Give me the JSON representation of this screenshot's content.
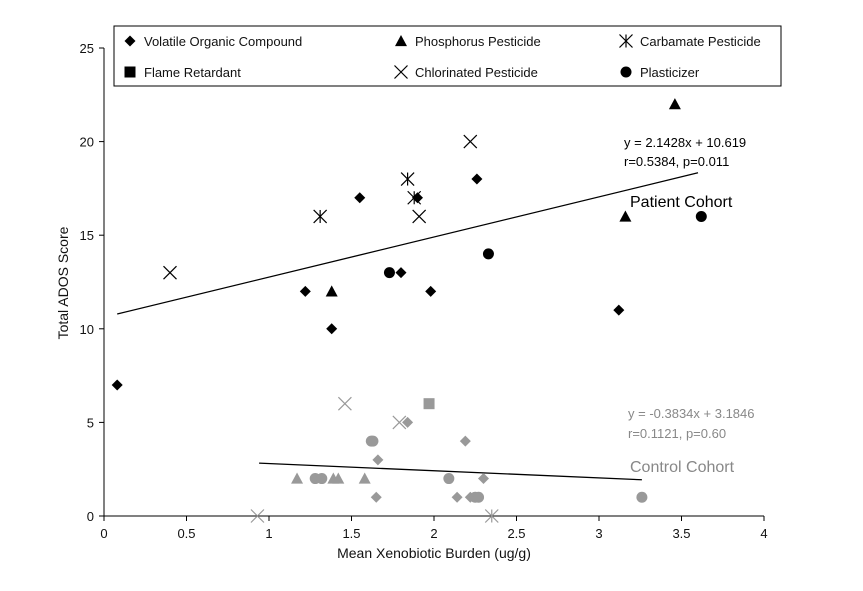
{
  "chart_data": {
    "type": "scatter",
    "xlabel": "Mean Xenobiotic Burden (ug/g)",
    "ylabel": "Total ADOS Score",
    "xlim": [
      0,
      4
    ],
    "ylim": [
      0,
      25
    ],
    "xticks": [
      0,
      0.5,
      1,
      1.5,
      2,
      2.5,
      3,
      3.5,
      4
    ],
    "xtick_labels": [
      "0",
      "0.5",
      "1",
      "1.5",
      "2",
      "2.5",
      "3",
      "3.5",
      "4"
    ],
    "yticks": [
      0,
      5,
      10,
      15,
      20,
      25
    ],
    "ytick_labels": [
      "0",
      "5",
      "10",
      "15",
      "20",
      "25"
    ],
    "grid": false,
    "legend_position": "top",
    "legend": [
      {
        "label": "Volatile Organic Compound",
        "marker": "diamond"
      },
      {
        "label": "Phosphorus Pesticide",
        "marker": "triangle"
      },
      {
        "label": "Carbamate Pesticide",
        "marker": "asterisk"
      },
      {
        "label": "Flame Retardant",
        "marker": "square"
      },
      {
        "label": "Chlorinated Pesticide",
        "marker": "x"
      },
      {
        "label": "Plasticizer",
        "marker": "circle"
      }
    ],
    "colors": {
      "patient": "#000000",
      "control": "#999999"
    },
    "cohorts": [
      {
        "name": "Patient Cohort",
        "color": "#000000",
        "equation": "y = 2.1428x + 10.619",
        "stats": "r=0.5384, p=0.011",
        "fit": {
          "slope": 2.1428,
          "intercept": 10.619,
          "x_range": [
            0.08,
            3.6
          ]
        },
        "points": [
          {
            "marker": "diamond",
            "x": 0.08,
            "y": 7
          },
          {
            "marker": "diamond",
            "x": 1.22,
            "y": 12
          },
          {
            "marker": "diamond",
            "x": 1.38,
            "y": 10
          },
          {
            "marker": "diamond",
            "x": 1.55,
            "y": 17
          },
          {
            "marker": "diamond",
            "x": 1.8,
            "y": 13
          },
          {
            "marker": "diamond",
            "x": 1.9,
            "y": 17
          },
          {
            "marker": "diamond",
            "x": 1.98,
            "y": 12
          },
          {
            "marker": "diamond",
            "x": 2.26,
            "y": 18
          },
          {
            "marker": "diamond",
            "x": 3.12,
            "y": 11
          },
          {
            "marker": "triangle",
            "x": 1.38,
            "y": 12
          },
          {
            "marker": "triangle",
            "x": 3.16,
            "y": 16
          },
          {
            "marker": "triangle",
            "x": 3.46,
            "y": 22
          },
          {
            "marker": "asterisk",
            "x": 1.31,
            "y": 16
          },
          {
            "marker": "asterisk",
            "x": 1.84,
            "y": 18
          },
          {
            "marker": "asterisk",
            "x": 1.88,
            "y": 17
          },
          {
            "marker": "x",
            "x": 0.4,
            "y": 13
          },
          {
            "marker": "x",
            "x": 1.91,
            "y": 16
          },
          {
            "marker": "x",
            "x": 2.22,
            "y": 20
          },
          {
            "marker": "circle",
            "x": 1.73,
            "y": 13
          },
          {
            "marker": "circle",
            "x": 2.33,
            "y": 14
          },
          {
            "marker": "circle",
            "x": 3.62,
            "y": 16
          }
        ]
      },
      {
        "name": "Control Cohort",
        "color": "#999999",
        "equation": "y = -0.3834x + 3.1846",
        "stats": "r=0.1121, p=0.60",
        "fit": {
          "slope": -0.3834,
          "intercept": 3.1846,
          "x_range": [
            0.94,
            3.26
          ]
        },
        "points": [
          {
            "marker": "diamond",
            "x": 1.65,
            "y": 1
          },
          {
            "marker": "diamond",
            "x": 1.66,
            "y": 3
          },
          {
            "marker": "diamond",
            "x": 1.84,
            "y": 5
          },
          {
            "marker": "diamond",
            "x": 2.14,
            "y": 1
          },
          {
            "marker": "diamond",
            "x": 2.19,
            "y": 4
          },
          {
            "marker": "diamond",
            "x": 2.22,
            "y": 1
          },
          {
            "marker": "diamond",
            "x": 2.3,
            "y": 2
          },
          {
            "marker": "triangle",
            "x": 1.17,
            "y": 2
          },
          {
            "marker": "triangle",
            "x": 1.39,
            "y": 2
          },
          {
            "marker": "triangle",
            "x": 1.42,
            "y": 2
          },
          {
            "marker": "triangle",
            "x": 1.58,
            "y": 2
          },
          {
            "marker": "square",
            "x": 1.97,
            "y": 6
          },
          {
            "marker": "x",
            "x": 0.93,
            "y": 0
          },
          {
            "marker": "x",
            "x": 1.46,
            "y": 6
          },
          {
            "marker": "x",
            "x": 1.79,
            "y": 5
          },
          {
            "marker": "asterisk",
            "x": 2.35,
            "y": 0
          },
          {
            "marker": "circle",
            "x": 1.28,
            "y": 2
          },
          {
            "marker": "circle",
            "x": 1.32,
            "y": 2
          },
          {
            "marker": "circle",
            "x": 1.62,
            "y": 4
          },
          {
            "marker": "circle",
            "x": 1.63,
            "y": 4
          },
          {
            "marker": "circle",
            "x": 2.09,
            "y": 2
          },
          {
            "marker": "circle",
            "x": 2.25,
            "y": 1
          },
          {
            "marker": "circle",
            "x": 2.27,
            "y": 1
          },
          {
            "marker": "circle",
            "x": 3.26,
            "y": 1
          }
        ]
      }
    ]
  }
}
